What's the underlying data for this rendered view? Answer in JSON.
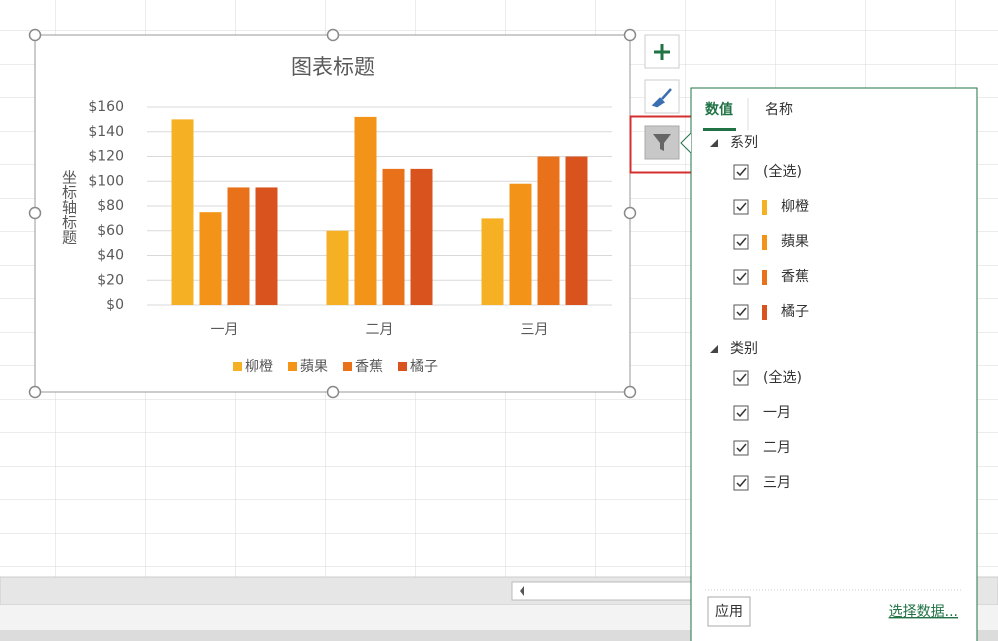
{
  "chart_data": {
    "type": "bar",
    "title": "图表标题",
    "y_label": "坐标轴标题",
    "categories": [
      "一月",
      "二月",
      "三月"
    ],
    "series": [
      {
        "name": "柳橙",
        "color": "#f5b024",
        "values": [
          150,
          60,
          70
        ]
      },
      {
        "name": "蘋果",
        "color": "#f39317",
        "values": [
          75,
          152,
          98
        ]
      },
      {
        "name": "香蕉",
        "color": "#e8711a",
        "values": [
          95,
          110,
          120
        ]
      },
      {
        "name": "橘子",
        "color": "#d9531e",
        "values": [
          95,
          110,
          120
        ]
      }
    ],
    "ylim": [
      0,
      160
    ],
    "yticks": [
      {
        "value": 0,
        "label": "$0"
      },
      {
        "value": 20,
        "label": "$20"
      },
      {
        "value": 40,
        "label": "$40"
      },
      {
        "value": 60,
        "label": "$60"
      },
      {
        "value": 80,
        "label": "$80"
      },
      {
        "value": 100,
        "label": "$100"
      },
      {
        "value": 120,
        "label": "$120"
      },
      {
        "value": 140,
        "label": "$140"
      },
      {
        "value": 160,
        "label": "$160"
      }
    ],
    "grid": true,
    "legend": "bottom"
  },
  "panel": {
    "tabs": [
      "数值",
      "名称"
    ],
    "series_heading": "系列",
    "category_heading": "类别",
    "select_all": "(全选)",
    "apply": "应用",
    "select_data": "选择数据..."
  }
}
